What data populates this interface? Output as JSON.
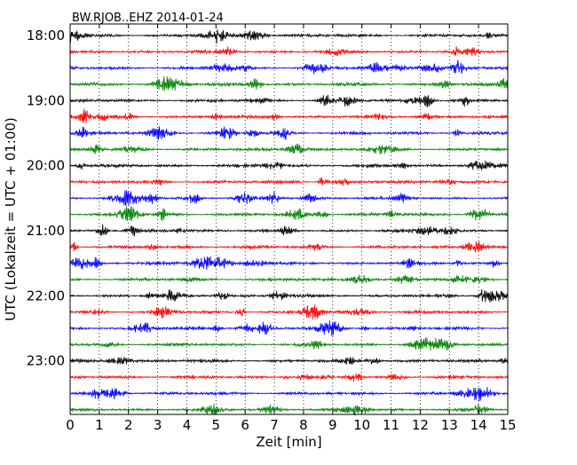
{
  "chart_data": {
    "type": "line",
    "title": "BW.RJOB..EHZ 2014-01-24",
    "xlabel": "Zeit  [min]",
    "ylabel": "UTC (Lokalzeit = UTC + 01:00)",
    "xlim": [
      0,
      15
    ],
    "x_ticks": [
      "0",
      "1",
      "2",
      "3",
      "4",
      "5",
      "6",
      "7",
      "8",
      "9",
      "10",
      "11",
      "12",
      "13",
      "14",
      "15"
    ],
    "y_tick_labels": [
      "18:00",
      "19:00",
      "20:00",
      "21:00",
      "22:00",
      "23:00"
    ],
    "grid": "vertical dotted at each minute",
    "trace_minutes": 15,
    "colors_cycle": [
      "#000000",
      "#ff0000",
      "#0000ff",
      "#008000"
    ],
    "series": [
      {
        "start": "18:00",
        "color": "#000000"
      },
      {
        "start": "18:15",
        "color": "#ff0000"
      },
      {
        "start": "18:30",
        "color": "#0000ff"
      },
      {
        "start": "18:45",
        "color": "#008000"
      },
      {
        "start": "19:00",
        "color": "#000000"
      },
      {
        "start": "19:15",
        "color": "#ff0000"
      },
      {
        "start": "19:30",
        "color": "#0000ff"
      },
      {
        "start": "19:45",
        "color": "#008000"
      },
      {
        "start": "20:00",
        "color": "#000000"
      },
      {
        "start": "20:15",
        "color": "#ff0000"
      },
      {
        "start": "20:30",
        "color": "#0000ff"
      },
      {
        "start": "20:45",
        "color": "#008000"
      },
      {
        "start": "21:00",
        "color": "#000000"
      },
      {
        "start": "21:15",
        "color": "#ff0000"
      },
      {
        "start": "21:30",
        "color": "#0000ff"
      },
      {
        "start": "21:45",
        "color": "#008000"
      },
      {
        "start": "22:00",
        "color": "#000000"
      },
      {
        "start": "22:15",
        "color": "#ff0000"
      },
      {
        "start": "22:30",
        "color": "#0000ff"
      },
      {
        "start": "22:45",
        "color": "#008000"
      },
      {
        "start": "23:00",
        "color": "#000000"
      },
      {
        "start": "23:15",
        "color": "#ff0000"
      },
      {
        "start": "23:30",
        "color": "#0000ff"
      },
      {
        "start": "23:45",
        "color": "#008000"
      }
    ]
  }
}
